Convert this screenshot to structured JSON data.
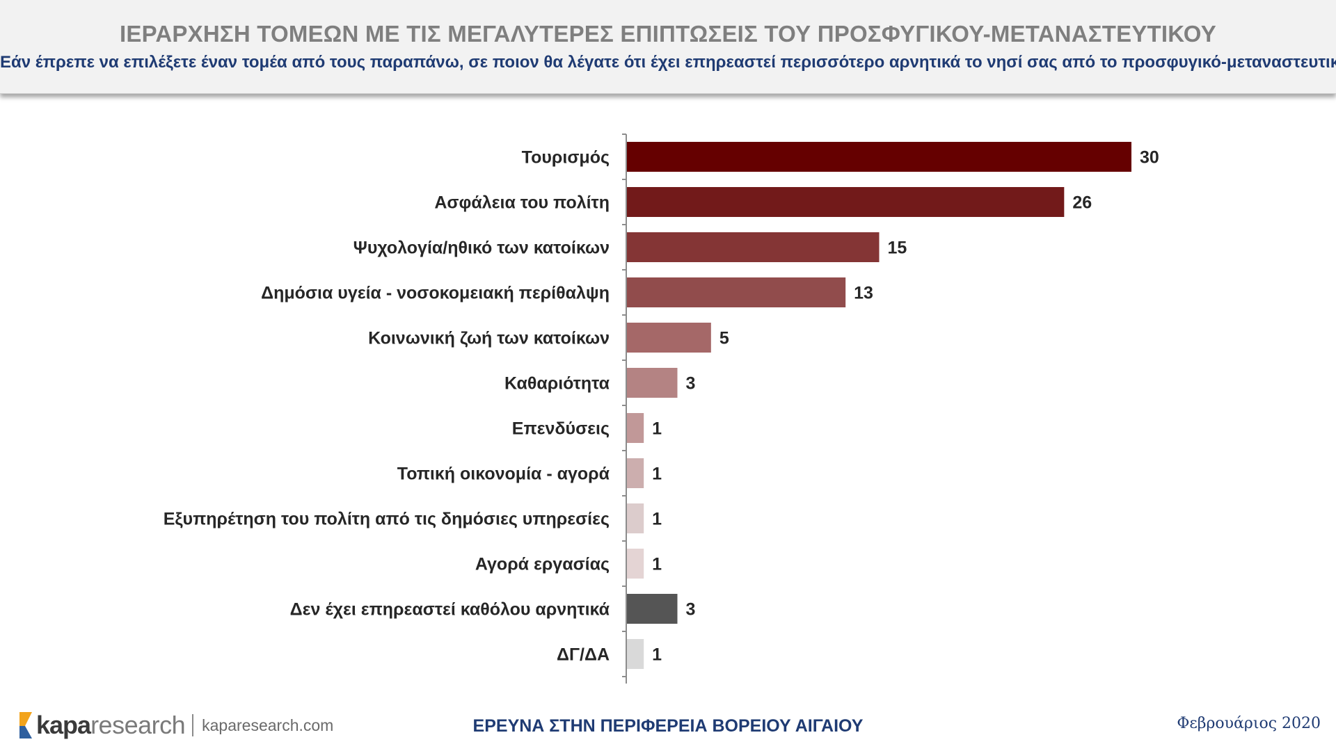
{
  "header": {
    "title": "ΙΕΡΑΡΧΗΣΗ ΤΟΜΕΩΝ ΜΕ ΤΙΣ ΜΕΓΑΛΥΤΕΡΕΣ ΕΠΙΠΤΩΣΕΙΣ ΤΟΥ ΠΡΟΣΦΥΓΙΚΟΥ-ΜΕΤΑΝΑΣΤΕΥΤΙΚΟΥ",
    "subtitle": "Εάν έπρεπε να επιλέξετε έναν τομέα από τους παραπάνω, σε ποιον θα λέγατε ότι έχει επηρεαστεί περισσότερο αρνητικά το νησί σας από το προσφυγικό-μεταναστευτικό;"
  },
  "chart_data": {
    "type": "bar",
    "orientation": "horizontal",
    "categories": [
      "Τουρισμός",
      "Ασφάλεια του πολίτη",
      "Ψυχολογία/ηθικό των κατοίκων",
      "Δημόσια υγεία - νοσοκομειακή περίθαλψη",
      "Κοινωνική ζωή των κατοίκων",
      "Καθαριότητα",
      "Επενδύσεις",
      "Τοπική οικονομία - αγορά",
      "Εξυπηρέτηση του πολίτη από τις δημόσιες υπηρεσίες",
      "Αγορά εργασίας",
      "Δεν έχει επηρεαστεί καθόλου αρνητικά",
      "ΔΓ/ΔΑ"
    ],
    "values": [
      30,
      26,
      15,
      13,
      5,
      3,
      1,
      1,
      1,
      1,
      3,
      1
    ],
    "colors": [
      "#650000",
      "#721a1a",
      "#843535",
      "#914c4c",
      "#a56868",
      "#b48383",
      "#c19898",
      "#ccaeae",
      "#dccccc",
      "#e4d4d4",
      "#555555",
      "#d9d9d9"
    ],
    "xlim": [
      0,
      31
    ],
    "data_labels": true
  },
  "footer": {
    "logo_kapa": "kapa",
    "logo_research": "research",
    "url": "kaparesearch.com",
    "center": "ΕΡΕΥΝΑ ΣΤΗΝ ΠΕΡΙΦΕΡΕΙΑ ΒΟΡΕΙΟΥ ΑΙΓΑΙΟΥ",
    "date": "Φεβρουάριος 2020",
    "logo_colors": [
      "#f2a31b",
      "#2e5f9e"
    ]
  }
}
